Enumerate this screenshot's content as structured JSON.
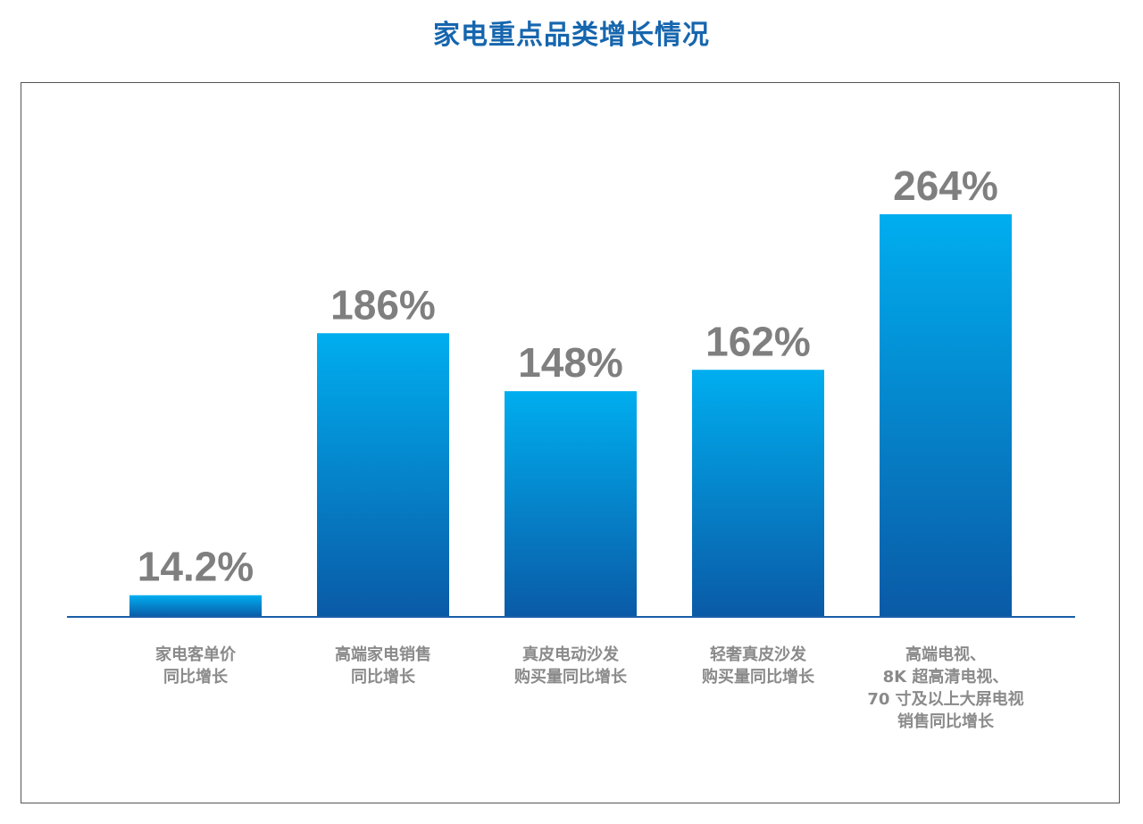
{
  "chart_data": {
    "type": "bar",
    "title": "家电重点品类增长情况",
    "xlabel": "",
    "ylabel": "",
    "unit": "%",
    "categories": [
      [
        "家电客单价",
        "同比增长"
      ],
      [
        "高端家电销售",
        "同比增长"
      ],
      [
        "真皮电动沙发",
        "购买量同比增长"
      ],
      [
        "轻奢真皮沙发",
        "购买量同比增长"
      ],
      [
        "高端电视、",
        "8K 超高清电视、",
        "70 寸及以上大屏电视",
        "销售同比增长"
      ]
    ],
    "values": [
      14.2,
      186,
      148,
      162,
      264
    ],
    "value_labels": [
      "14.2%",
      "186%",
      "148%",
      "162%",
      "264%"
    ],
    "ylim": [
      0,
      264
    ],
    "grid": false,
    "legend": "none",
    "colors": {
      "bar_top": "#00aeef",
      "bar_bottom": "#0a5aa6",
      "axis": "#1a5fa8",
      "title": "#1666ae",
      "value_text": "#7f7f7f",
      "category_text": "#8a8a8a",
      "frame": "#555555"
    }
  }
}
